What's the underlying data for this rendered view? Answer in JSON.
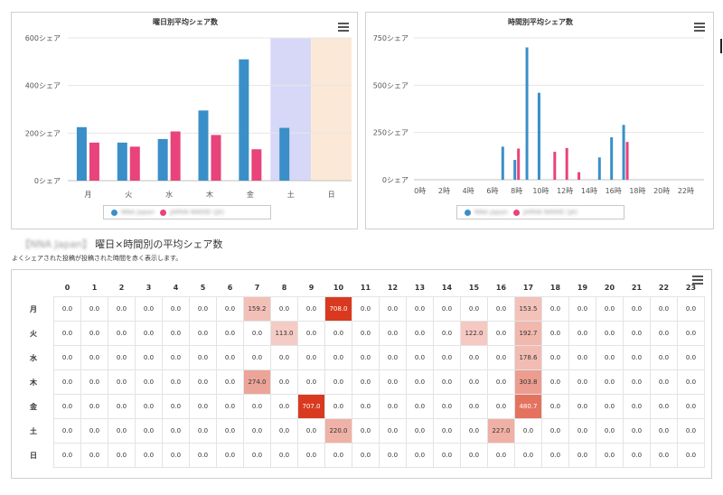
{
  "chart_data": [
    {
      "type": "bar",
      "title": "曜日別平均シェア数",
      "categories": [
        "月",
        "火",
        "水",
        "木",
        "金",
        "土",
        "日"
      ],
      "series": [
        {
          "name": "NNA Japan",
          "color": "#3a8fc8",
          "values": [
            225,
            160,
            175,
            295,
            510,
            222,
            0
          ]
        },
        {
          "name": "JAPAN NIKKEI (JA)",
          "color": "#e8437a",
          "values": [
            160,
            143,
            207,
            192,
            132,
            0,
            0
          ]
        }
      ],
      "yticks": [
        "0シェア",
        "200シェア",
        "400シェア",
        "600シェア"
      ],
      "ylim": [
        0,
        600
      ],
      "highlight_bands": [
        {
          "category": "土",
          "color": "#d7d8f7"
        },
        {
          "category": "日",
          "color": "#fce8d6"
        }
      ]
    },
    {
      "type": "bar",
      "title": "時間別平均シェア数",
      "categories": [
        "0時",
        "1時",
        "2時",
        "3時",
        "4時",
        "5時",
        "6時",
        "7時",
        "8時",
        "9時",
        "10時",
        "11時",
        "12時",
        "13時",
        "14時",
        "15時",
        "16時",
        "17時",
        "18時",
        "19時",
        "20時",
        "21時",
        "22時",
        "23時"
      ],
      "xticks": [
        "0時",
        "2時",
        "4時",
        "6時",
        "8時",
        "10時",
        "12時",
        "14時",
        "16時",
        "18時",
        "20時",
        "22時"
      ],
      "series": [
        {
          "name": "NNA Japan",
          "color": "#3a8fc8",
          "values": [
            0,
            0,
            0,
            0,
            0,
            0,
            0,
            175,
            105,
            700,
            460,
            0,
            0,
            0,
            0,
            118,
            225,
            290,
            0,
            0,
            0,
            0,
            0,
            0
          ]
        },
        {
          "name": "JAPAN NIKKEI (JA)",
          "color": "#e8437a",
          "values": [
            0,
            0,
            0,
            0,
            0,
            0,
            0,
            0,
            165,
            0,
            0,
            148,
            168,
            40,
            0,
            0,
            0,
            200,
            0,
            0,
            0,
            0,
            0,
            0
          ]
        }
      ],
      "yticks": [
        "0シェア",
        "250シェア",
        "500シェア",
        "750シェア"
      ],
      "ylim": [
        0,
        750
      ]
    },
    {
      "type": "heatmap",
      "title": "曜日×時間別の平均シェア数",
      "account": "【NNA Japan】",
      "subtitle": "よくシェアされた投稿が投稿された時間を赤く表示します。",
      "x": [
        "0",
        "1",
        "2",
        "3",
        "4",
        "5",
        "6",
        "7",
        "8",
        "9",
        "10",
        "11",
        "12",
        "13",
        "14",
        "15",
        "16",
        "17",
        "18",
        "19",
        "20",
        "21",
        "22",
        "23"
      ],
      "y": [
        "月",
        "火",
        "水",
        "木",
        "金",
        "土",
        "日"
      ],
      "max": 708.0,
      "values": [
        [
          0,
          0,
          0,
          0,
          0,
          0,
          0,
          159.2,
          0,
          0,
          708.0,
          0,
          0,
          0,
          0,
          0,
          0,
          153.5,
          0,
          0,
          0,
          0,
          0,
          0
        ],
        [
          0,
          0,
          0,
          0,
          0,
          0,
          0,
          0,
          113.0,
          0,
          0,
          0,
          0,
          0,
          0,
          122.0,
          0,
          192.7,
          0,
          0,
          0,
          0,
          0,
          0
        ],
        [
          0,
          0,
          0,
          0,
          0,
          0,
          0,
          0,
          0,
          0,
          0,
          0,
          0,
          0,
          0,
          0,
          0,
          178.6,
          0,
          0,
          0,
          0,
          0,
          0
        ],
        [
          0,
          0,
          0,
          0,
          0,
          0,
          0,
          274.0,
          0,
          0,
          0,
          0,
          0,
          0,
          0,
          0,
          0,
          303.8,
          0,
          0,
          0,
          0,
          0,
          0
        ],
        [
          0,
          0,
          0,
          0,
          0,
          0,
          0,
          0,
          0,
          707.0,
          0,
          0,
          0,
          0,
          0,
          0,
          0,
          480.7,
          0,
          0,
          0,
          0,
          0,
          0
        ],
        [
          0,
          0,
          0,
          0,
          0,
          0,
          0,
          0,
          0,
          0,
          220.0,
          0,
          0,
          0,
          0,
          0,
          227.0,
          0,
          0,
          0,
          0,
          0,
          0,
          0
        ],
        [
          0,
          0,
          0,
          0,
          0,
          0,
          0,
          0,
          0,
          0,
          0,
          0,
          0,
          0,
          0,
          0,
          0,
          0,
          0,
          0,
          0,
          0,
          0,
          0
        ]
      ]
    }
  ]
}
